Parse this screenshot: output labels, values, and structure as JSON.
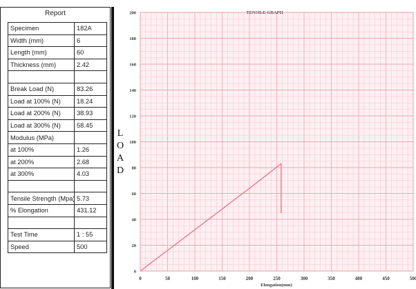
{
  "report": {
    "title": "Report",
    "rows": [
      {
        "label": "Specimen",
        "value": "182A"
      },
      {
        "label": "Width (mm)",
        "value": "6"
      },
      {
        "label": "Length (mm)",
        "value": "60"
      },
      {
        "label": "Thickness (mm)",
        "value": "2.42"
      },
      {
        "label": "",
        "value": ""
      },
      {
        "label": "Break Load (N)",
        "value": "83.26"
      },
      {
        "label": "Load at 100% (N)",
        "value": "18.24"
      },
      {
        "label": "Load at 200% (N)",
        "value": "38.93"
      },
      {
        "label": "Load at 300% (N)",
        "value": "58.45"
      },
      {
        "label": "Modulus (MPa)",
        "value": ""
      },
      {
        "label": "at 100%",
        "value": "1.26"
      },
      {
        "label": "at 200%",
        "value": "2.68"
      },
      {
        "label": "at 300%",
        "value": "4.03"
      },
      {
        "label": "",
        "value": ""
      },
      {
        "label": "Tensile Strength (Mpa)",
        "value": "5.73"
      },
      {
        "label": "% Elongation",
        "value": "431.12"
      },
      {
        "label": "",
        "value": ""
      },
      {
        "label": "Test Time",
        "value": "1 : 55"
      },
      {
        "label": "Speed",
        "value": "500"
      }
    ]
  },
  "chart_data": {
    "type": "line",
    "title": "TENSILE GRAPH",
    "xlabel": "Elongation(mm)",
    "ylabel": "LOAD",
    "xlim": [
      0,
      500
    ],
    "ylim": [
      0,
      200
    ],
    "xticks": [
      "0",
      "50",
      "100",
      "150",
      "200",
      "250",
      "300",
      "350",
      "400",
      "450",
      "500"
    ],
    "yticks": [
      "0",
      "20",
      "40",
      "60",
      "80",
      "100",
      "120",
      "140",
      "160",
      "180",
      "200"
    ],
    "grid": true,
    "series": [
      {
        "x": [
          0,
          50,
          100,
          150,
          200,
          258,
          258
        ],
        "y": [
          0,
          16,
          32,
          48,
          64,
          83,
          45
        ]
      }
    ],
    "colors": {
      "grid_minor": "#f6c3cc",
      "grid_major": "#f0a6b3",
      "line": "#ec6f86",
      "background": "#fdf0f2"
    }
  }
}
